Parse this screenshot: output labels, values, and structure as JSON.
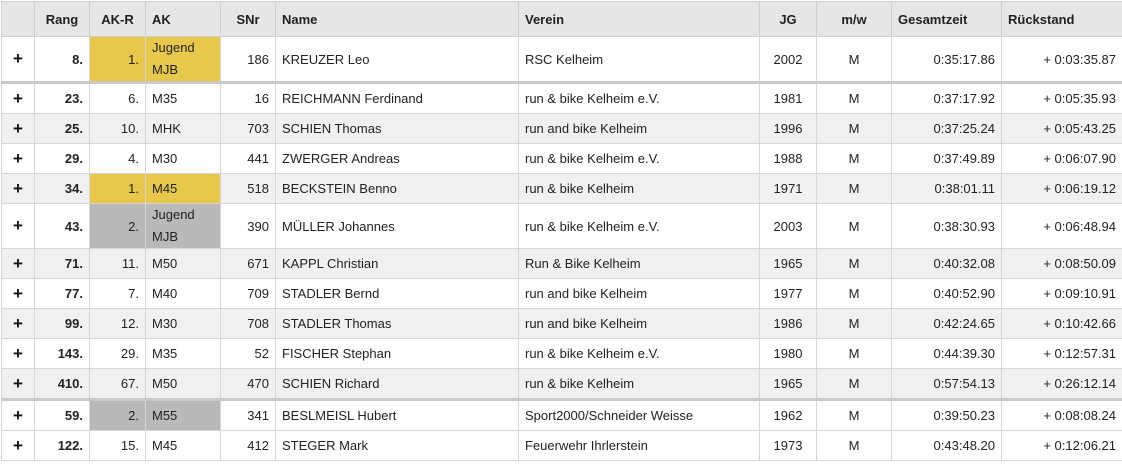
{
  "columns": [
    "",
    "Rang",
    "AK-R",
    "AK",
    "SNr",
    "Name",
    "Verein",
    "JG",
    "m/w",
    "Gesamtzeit",
    "Rückstand"
  ],
  "expand_symbol": "+",
  "medal_colors": {
    "gold": "#e8c84b",
    "silver": "#b9b9b9"
  },
  "rows": [
    {
      "rang": "8.",
      "akr": "1.",
      "ak": "Jugend MJB",
      "snr": "186",
      "name": "KREUZER Leo",
      "verein": "RSC Kelheim",
      "jg": "2002",
      "mw": "M",
      "zeit": "0:35:17.86",
      "rueckstand": "+ 0:03:35.87",
      "medal": "gold"
    },
    {
      "rang": "23.",
      "akr": "6.",
      "ak": "M35",
      "snr": "16",
      "name": "REICHMANN Ferdinand",
      "verein": "run & bike Kelheim e.V.",
      "jg": "1981",
      "mw": "M",
      "zeit": "0:37:17.92",
      "rueckstand": "+ 0:05:35.93",
      "medal": ""
    },
    {
      "rang": "25.",
      "akr": "10.",
      "ak": "MHK",
      "snr": "703",
      "name": "SCHIEN Thomas",
      "verein": "run and bike Kelheim",
      "jg": "1996",
      "mw": "M",
      "zeit": "0:37:25.24",
      "rueckstand": "+ 0:05:43.25",
      "medal": ""
    },
    {
      "rang": "29.",
      "akr": "4.",
      "ak": "M30",
      "snr": "441",
      "name": "ZWERGER Andreas",
      "verein": "run & bike Kelheim e.V.",
      "jg": "1988",
      "mw": "M",
      "zeit": "0:37:49.89",
      "rueckstand": "+ 0:06:07.90",
      "medal": ""
    },
    {
      "rang": "34.",
      "akr": "1.",
      "ak": "M45",
      "snr": "518",
      "name": "BECKSTEIN Benno",
      "verein": "run & bike Kelheim",
      "jg": "1971",
      "mw": "M",
      "zeit": "0:38:01.11",
      "rueckstand": "+ 0:06:19.12",
      "medal": "gold"
    },
    {
      "rang": "43.",
      "akr": "2.",
      "ak": "Jugend MJB",
      "snr": "390",
      "name": "MÜLLER Johannes",
      "verein": "run & bike Kelheim e.V.",
      "jg": "2003",
      "mw": "M",
      "zeit": "0:38:30.93",
      "rueckstand": "+ 0:06:48.94",
      "medal": "silver"
    },
    {
      "rang": "71.",
      "akr": "11.",
      "ak": "M50",
      "snr": "671",
      "name": "KAPPL Christian",
      "verein": "Run & Bike Kelheim",
      "jg": "1965",
      "mw": "M",
      "zeit": "0:40:32.08",
      "rueckstand": "+ 0:08:50.09",
      "medal": ""
    },
    {
      "rang": "77.",
      "akr": "7.",
      "ak": "M40",
      "snr": "709",
      "name": "STADLER Bernd",
      "verein": "run and bike Kelheim",
      "jg": "1977",
      "mw": "M",
      "zeit": "0:40:52.90",
      "rueckstand": "+ 0:09:10.91",
      "medal": ""
    },
    {
      "rang": "99.",
      "akr": "12.",
      "ak": "M30",
      "snr": "708",
      "name": "STADLER Thomas",
      "verein": "run and bike Kelheim",
      "jg": "1986",
      "mw": "M",
      "zeit": "0:42:24.65",
      "rueckstand": "+ 0:10:42.66",
      "medal": ""
    },
    {
      "rang": "143.",
      "akr": "29.",
      "ak": "M35",
      "snr": "52",
      "name": "FISCHER Stephan",
      "verein": "run & bike Kelheim e.V.",
      "jg": "1980",
      "mw": "M",
      "zeit": "0:44:39.30",
      "rueckstand": "+ 0:12:57.31",
      "medal": ""
    },
    {
      "rang": "410.",
      "akr": "67.",
      "ak": "M50",
      "snr": "470",
      "name": "SCHIEN Richard",
      "verein": "run & bike Kelheim",
      "jg": "1965",
      "mw": "M",
      "zeit": "0:57:54.13",
      "rueckstand": "+ 0:26:12.14",
      "medal": ""
    },
    {
      "rang": "59.",
      "akr": "2.",
      "ak": "M55",
      "snr": "341",
      "name": "BESLMEISL Hubert",
      "verein": "Sport2000/Schneider Weisse",
      "jg": "1962",
      "mw": "M",
      "zeit": "0:39:50.23",
      "rueckstand": "+ 0:08:08.24",
      "medal": "silver"
    },
    {
      "rang": "122.",
      "akr": "15.",
      "ak": "M45",
      "snr": "412",
      "name": "STEGER Mark",
      "verein": "Feuerwehr Ihrlerstein",
      "jg": "1973",
      "mw": "M",
      "zeit": "0:43:48.20",
      "rueckstand": "+ 0:12:06.21",
      "medal": ""
    }
  ]
}
